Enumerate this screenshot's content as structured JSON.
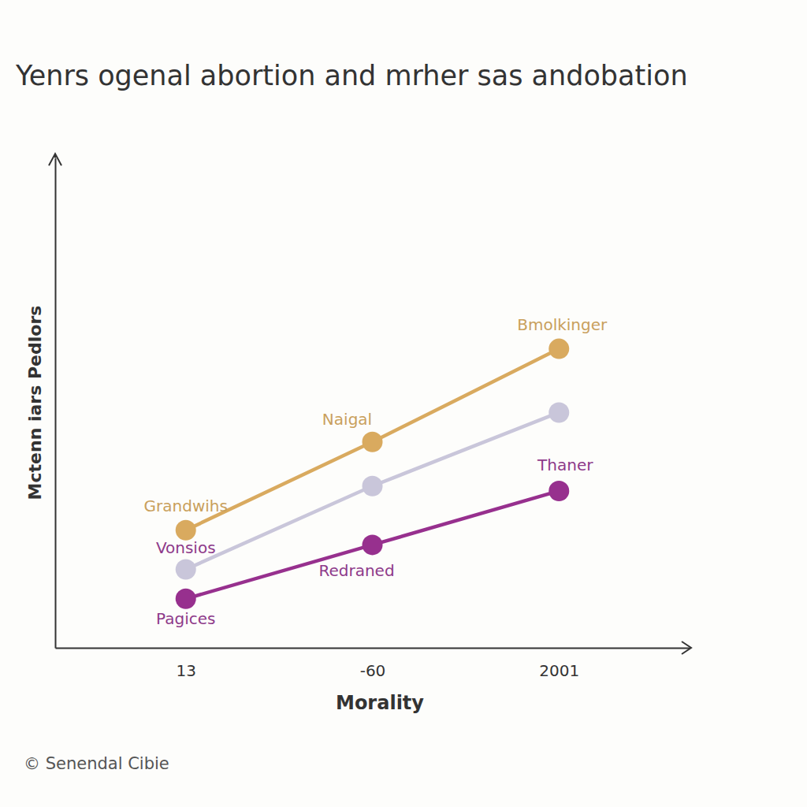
{
  "chart_data": {
    "type": "line",
    "title": "Yenrs ogenal abortion and mrher sas andobation",
    "y_label": "Mctenn iars Pedlors",
    "x_label": "Morality",
    "categories": [
      "13",
      "-60",
      "2001"
    ],
    "series": [
      {
        "color": "#d9aa5f",
        "values": [
          24,
          42,
          61
        ]
      },
      {
        "color": "#c9c6da",
        "values": [
          16,
          33,
          48
        ]
      },
      {
        "color": "#97308e",
        "values": [
          10,
          21,
          32
        ]
      }
    ],
    "ylim": [
      0,
      100
    ],
    "yticks": [],
    "tick_labels": "x",
    "grid": false,
    "marker": "circle",
    "annotations": [
      "Grandwihs",
      "Naigal",
      "Bmolkinger",
      "Vonsios",
      "Pagices",
      "Redraned",
      "Thaner"
    ],
    "footer": "© Senendal Cibie"
  }
}
